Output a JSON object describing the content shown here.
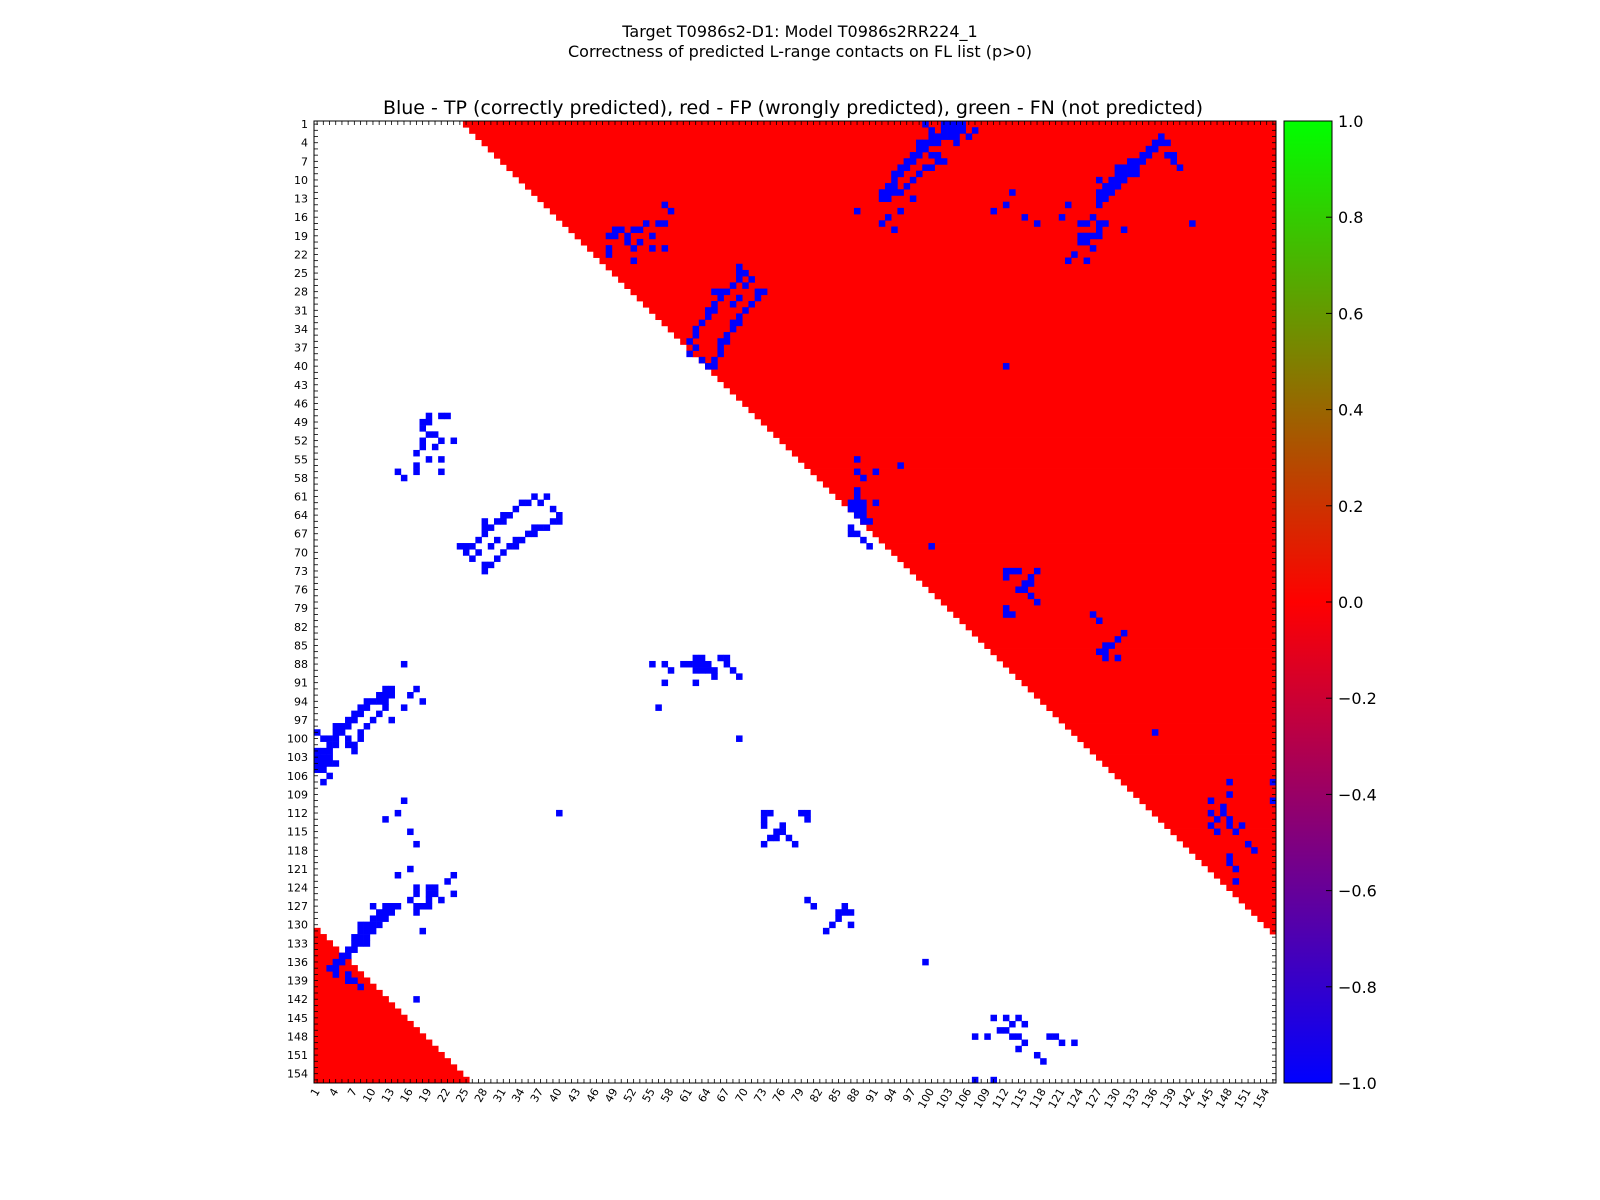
{
  "figure": {
    "title_line1": "Target T0986s2-D1: Model T0986s2RR224_1",
    "title_line2": "Correctness of predicted L-range contacts on FL list (p>0)"
  },
  "chart_data": {
    "type": "heatmap",
    "title": "Blue - TP (correctly predicted), red - FP (wrongly predicted), green - FN (not predicted)",
    "n": 155,
    "axis_range": [
      1,
      155
    ],
    "x_tick_labels": [
      "1",
      "4",
      "7",
      "10",
      "13",
      "16",
      "19",
      "22",
      "25",
      "28",
      "31",
      "34",
      "37",
      "40",
      "43",
      "46",
      "49",
      "52",
      "55",
      "58",
      "61",
      "64",
      "67",
      "70",
      "73",
      "76",
      "79",
      "82",
      "85",
      "88",
      "91",
      "94",
      "97",
      "100",
      "103",
      "106",
      "109",
      "112",
      "115",
      "118",
      "121",
      "124",
      "127",
      "130",
      "133",
      "136",
      "139",
      "142",
      "145",
      "148",
      "151",
      "154"
    ],
    "y_tick_labels": [
      "1",
      "4",
      "7",
      "10",
      "13",
      "16",
      "19",
      "22",
      "25",
      "28",
      "31",
      "34",
      "37",
      "40",
      "43",
      "46",
      "49",
      "52",
      "55",
      "58",
      "61",
      "64",
      "67",
      "70",
      "73",
      "76",
      "79",
      "82",
      "85",
      "88",
      "91",
      "94",
      "97",
      "100",
      "103",
      "106",
      "109",
      "112",
      "115",
      "118",
      "121",
      "124",
      "127",
      "130",
      "133",
      "136",
      "139",
      "142",
      "145",
      "148",
      "151",
      "154"
    ],
    "colorbar": {
      "range": [
        -1.0,
        1.0
      ],
      "tick_labels": [
        "1.0",
        "0.8",
        "0.6",
        "0.4",
        "0.2",
        "0.0",
        "−0.2",
        "−0.4",
        "−0.6",
        "−0.8",
        "−1.0"
      ],
      "colors": [
        "#0000ff",
        "#ff0000",
        "#00ff00"
      ]
    },
    "colors": {
      "TP": "#0000ff",
      "FP": "#ff0000",
      "FN": "#00ff00",
      "empty": "#ffffff"
    },
    "upper_fill_min_separation": 24,
    "lower_fill_min_separation": 130,
    "tp_contacts": [
      [
        1,
        103
      ],
      [
        1,
        104
      ],
      [
        1,
        105
      ],
      [
        2,
        102
      ],
      [
        2,
        103
      ],
      [
        2,
        107
      ],
      [
        3,
        101
      ],
      [
        3,
        102
      ],
      [
        3,
        100
      ],
      [
        4,
        100
      ],
      [
        4,
        101
      ],
      [
        4,
        99
      ],
      [
        5,
        99
      ],
      [
        5,
        98
      ],
      [
        6,
        97
      ],
      [
        6,
        98
      ],
      [
        7,
        96
      ],
      [
        7,
        97
      ],
      [
        8,
        95
      ],
      [
        8,
        96
      ],
      [
        9,
        94
      ],
      [
        9,
        95
      ],
      [
        10,
        94
      ],
      [
        11,
        94
      ],
      [
        11,
        93
      ],
      [
        12,
        92
      ],
      [
        12,
        93
      ],
      [
        3,
        137
      ],
      [
        4,
        136
      ],
      [
        4,
        137
      ],
      [
        5,
        135
      ],
      [
        5,
        136
      ],
      [
        6,
        138
      ],
      [
        6,
        134
      ],
      [
        7,
        133
      ],
      [
        7,
        134
      ],
      [
        8,
        132
      ],
      [
        8,
        131
      ],
      [
        9,
        130
      ],
      [
        9,
        131
      ],
      [
        10,
        129
      ],
      [
        10,
        130
      ],
      [
        11,
        128
      ],
      [
        11,
        129
      ],
      [
        12,
        127
      ],
      [
        12,
        128
      ],
      [
        13,
        127
      ],
      [
        10,
        127
      ],
      [
        8,
        130
      ],
      [
        9,
        133
      ],
      [
        7,
        132
      ],
      [
        4,
        138
      ],
      [
        6,
        139
      ],
      [
        8,
        140
      ],
      [
        15,
        95
      ],
      [
        15,
        88
      ],
      [
        17,
        92
      ],
      [
        16,
        93
      ],
      [
        18,
        94
      ],
      [
        17,
        125
      ],
      [
        18,
        127
      ],
      [
        19,
        124
      ],
      [
        19,
        126
      ],
      [
        23,
        125
      ],
      [
        22,
        123
      ],
      [
        20,
        124
      ],
      [
        21,
        126
      ],
      [
        15,
        58
      ],
      [
        18,
        50
      ],
      [
        18,
        49
      ],
      [
        18,
        53
      ],
      [
        17,
        54
      ],
      [
        19,
        55
      ],
      [
        20,
        53
      ],
      [
        21,
        55
      ],
      [
        21,
        57
      ],
      [
        23,
        52
      ],
      [
        26,
        69
      ],
      [
        27,
        68
      ],
      [
        28,
        67
      ],
      [
        28,
        66
      ],
      [
        29,
        66
      ],
      [
        30,
        65
      ],
      [
        31,
        65
      ],
      [
        31,
        64
      ],
      [
        32,
        64
      ],
      [
        33,
        63
      ],
      [
        34,
        62
      ],
      [
        35,
        62
      ],
      [
        36,
        61
      ],
      [
        37,
        62
      ],
      [
        38,
        61
      ],
      [
        39,
        63
      ],
      [
        40,
        65
      ],
      [
        25,
        70
      ],
      [
        30,
        68
      ],
      [
        29,
        69
      ],
      [
        27,
        70
      ],
      [
        26,
        71
      ],
      [
        48,
        19
      ],
      [
        48,
        21
      ],
      [
        48,
        22
      ],
      [
        49,
        19
      ],
      [
        51,
        20
      ],
      [
        51,
        19
      ],
      [
        52,
        21
      ],
      [
        52,
        18
      ],
      [
        52,
        23
      ],
      [
        56,
        17
      ],
      [
        57,
        14
      ],
      [
        57,
        17
      ],
      [
        65,
        28
      ],
      [
        65,
        39
      ],
      [
        66,
        36
      ],
      [
        66,
        37
      ],
      [
        66,
        38
      ],
      [
        67,
        35
      ],
      [
        67,
        36
      ],
      [
        68,
        33
      ],
      [
        68,
        34
      ],
      [
        69,
        32
      ],
      [
        69,
        33
      ],
      [
        70,
        31
      ],
      [
        71,
        30
      ],
      [
        72,
        29
      ],
      [
        72,
        28
      ],
      [
        73,
        28
      ],
      [
        69,
        24
      ],
      [
        69,
        25
      ],
      [
        64,
        40
      ],
      [
        63,
        39
      ],
      [
        88,
        61
      ],
      [
        88,
        62
      ],
      [
        89,
        63
      ],
      [
        88,
        64
      ],
      [
        89,
        65
      ],
      [
        87,
        66
      ],
      [
        87,
        67
      ],
      [
        88,
        67
      ],
      [
        89,
        68
      ],
      [
        90,
        69
      ],
      [
        89,
        64
      ],
      [
        90,
        65
      ],
      [
        55,
        88
      ],
      [
        57,
        88
      ],
      [
        58,
        89
      ],
      [
        60,
        88
      ],
      [
        61,
        88
      ],
      [
        62,
        87
      ],
      [
        62,
        89
      ],
      [
        63,
        87
      ],
      [
        63,
        88
      ],
      [
        64,
        89
      ],
      [
        62,
        91
      ],
      [
        56,
        95
      ],
      [
        98,
        4
      ],
      [
        99,
        5
      ],
      [
        100,
        6
      ],
      [
        101,
        6
      ],
      [
        102,
        3
      ],
      [
        102,
        7
      ],
      [
        101,
        7
      ],
      [
        100,
        8
      ],
      [
        99,
        8
      ],
      [
        98,
        9
      ],
      [
        97,
        10
      ],
      [
        96,
        11
      ],
      [
        95,
        12
      ],
      [
        94,
        12
      ],
      [
        93,
        13
      ],
      [
        92,
        13
      ],
      [
        93,
        12
      ],
      [
        103,
        2
      ],
      [
        103,
        3
      ],
      [
        104,
        2
      ],
      [
        104,
        3
      ],
      [
        104,
        4
      ],
      [
        105,
        2
      ],
      [
        106,
        3
      ],
      [
        102,
        1
      ],
      [
        100,
        2
      ],
      [
        99,
        1
      ],
      [
        127,
        13
      ],
      [
        127,
        14
      ],
      [
        128,
        12
      ],
      [
        128,
        13
      ],
      [
        129,
        11
      ],
      [
        129,
        12
      ],
      [
        130,
        10
      ],
      [
        130,
        11
      ],
      [
        131,
        9
      ],
      [
        131,
        10
      ],
      [
        132,
        8
      ],
      [
        132,
        9
      ],
      [
        133,
        7
      ],
      [
        133,
        8
      ],
      [
        134,
        6
      ],
      [
        134,
        7
      ],
      [
        135,
        5
      ],
      [
        135,
        6
      ],
      [
        136,
        4
      ],
      [
        136,
        5
      ],
      [
        137,
        3
      ],
      [
        137,
        4
      ],
      [
        138,
        6
      ],
      [
        139,
        7
      ],
      [
        127,
        17
      ],
      [
        126,
        16
      ],
      [
        128,
        17
      ],
      [
        127,
        19
      ],
      [
        130,
        11
      ],
      [
        112,
        73
      ],
      [
        112,
        74
      ],
      [
        113,
        73
      ],
      [
        114,
        73
      ],
      [
        115,
        75
      ],
      [
        116,
        74
      ],
      [
        117,
        73
      ],
      [
        114,
        76
      ],
      [
        76,
        114
      ],
      [
        76,
        115
      ],
      [
        77,
        116
      ],
      [
        78,
        117
      ],
      [
        75,
        116
      ],
      [
        79,
        112
      ],
      [
        80,
        113
      ],
      [
        80,
        112
      ],
      [
        148,
        107
      ],
      [
        148,
        109
      ],
      [
        148,
        114
      ],
      [
        147,
        111
      ],
      [
        147,
        112
      ],
      [
        148,
        113
      ],
      [
        149,
        115
      ],
      [
        148,
        119
      ],
      [
        149,
        121
      ],
      [
        150,
        114
      ],
      [
        110,
        145
      ],
      [
        112,
        145
      ],
      [
        113,
        146
      ],
      [
        114,
        145
      ],
      [
        115,
        146
      ],
      [
        117,
        151
      ],
      [
        118,
        152
      ],
      [
        120,
        148
      ],
      [
        121,
        149
      ],
      [
        123,
        149
      ],
      [
        107,
        155
      ],
      [
        110,
        155
      ],
      [
        99,
        136
      ],
      [
        85,
        128
      ],
      [
        85,
        129
      ],
      [
        86,
        127
      ],
      [
        86,
        128
      ],
      [
        87,
        128
      ],
      [
        87,
        130
      ],
      [
        84,
        130
      ],
      [
        83,
        131
      ],
      [
        81,
        127
      ],
      [
        80,
        126
      ],
      [
        57,
        91
      ],
      [
        69,
        100
      ],
      [
        14,
        112
      ],
      [
        13,
        97
      ],
      [
        18,
        131
      ],
      [
        19,
        125
      ],
      [
        20,
        125
      ],
      [
        23,
        122
      ],
      [
        22,
        123
      ],
      [
        17,
        142
      ],
      [
        112,
        40
      ],
      [
        113,
        12
      ],
      [
        110,
        15
      ],
      [
        115,
        16
      ],
      [
        117,
        17
      ],
      [
        122,
        14
      ],
      [
        121,
        16
      ],
      [
        124,
        17
      ]
    ]
  }
}
